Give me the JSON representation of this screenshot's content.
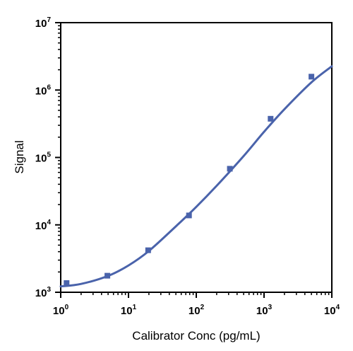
{
  "chart_data": {
    "type": "scatter",
    "title": "",
    "xlabel": "Calibrator Conc (pg/mL)",
    "ylabel": "Signal",
    "x_scale": "log",
    "y_scale": "log",
    "xlim": [
      1,
      10000
    ],
    "ylim": [
      1000,
      10000000
    ],
    "x_ticks": [
      {
        "base": "10",
        "exp": "0"
      },
      {
        "base": "10",
        "exp": "1"
      },
      {
        "base": "10",
        "exp": "2"
      },
      {
        "base": "10",
        "exp": "3"
      },
      {
        "base": "10",
        "exp": "4"
      }
    ],
    "y_ticks": [
      {
        "base": "10",
        "exp": "3"
      },
      {
        "base": "10",
        "exp": "4"
      },
      {
        "base": "10",
        "exp": "5"
      },
      {
        "base": "10",
        "exp": "6"
      },
      {
        "base": "10",
        "exp": "7"
      }
    ],
    "grid": false,
    "legend": "none",
    "point_color": "#4a63ab",
    "curve_color": "#4a63ab",
    "series": [
      {
        "points": [
          {
            "x": 1.22,
            "y": 1370
          },
          {
            "x": 4.88,
            "y": 1760
          },
          {
            "x": 19.5,
            "y": 4200
          },
          {
            "x": 78.1,
            "y": 13800
          },
          {
            "x": 313,
            "y": 68000
          },
          {
            "x": 1250,
            "y": 375000
          },
          {
            "x": 5000,
            "y": 1580000
          }
        ]
      }
    ],
    "curve": [
      {
        "x": 1.0,
        "y": 1220
      },
      {
        "x": 2.0,
        "y": 1330
      },
      {
        "x": 5.0,
        "y": 1750
      },
      {
        "x": 10.0,
        "y": 2500
      },
      {
        "x": 20.0,
        "y": 4100
      },
      {
        "x": 50.0,
        "y": 9500
      },
      {
        "x": 100.0,
        "y": 18500
      },
      {
        "x": 200.0,
        "y": 38000
      },
      {
        "x": 500.0,
        "y": 105000
      },
      {
        "x": 1000.0,
        "y": 240000
      },
      {
        "x": 2000.0,
        "y": 520000
      },
      {
        "x": 5000.0,
        "y": 1300000
      },
      {
        "x": 10000.0,
        "y": 2250000
      }
    ]
  }
}
